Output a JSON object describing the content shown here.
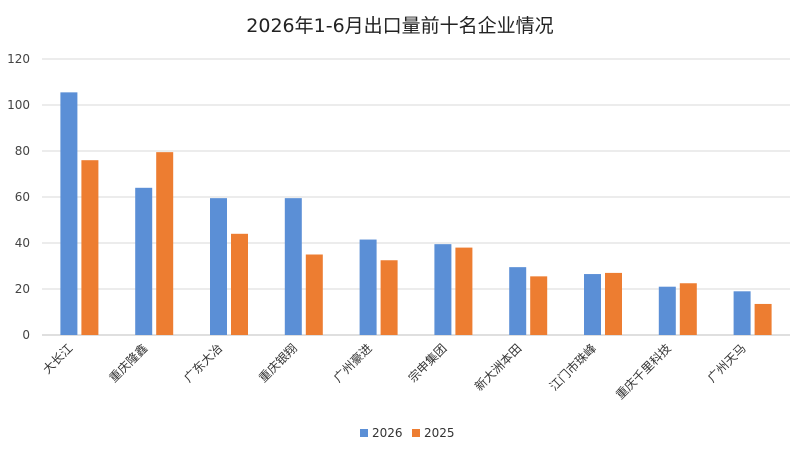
{
  "chart_data": {
    "type": "bar",
    "title": "2026年1-6月出口量前十名企业情况",
    "categories": [
      "大长江",
      "重庆隆鑫",
      "广东大冶",
      "重庆银翔",
      "广州豪进",
      "宗申集团",
      "新大洲本田",
      "江门市珠峰",
      "重庆千里科技",
      "广州天马"
    ],
    "series": [
      {
        "name": "2026",
        "color": "#5b8fd6",
        "values": [
          105.5,
          64,
          59.5,
          59.5,
          41.5,
          39.5,
          29.5,
          26.5,
          21,
          19
        ]
      },
      {
        "name": "2025",
        "color": "#ed7d31",
        "values": [
          76,
          79.5,
          44,
          35,
          32.5,
          38,
          25.5,
          27,
          22.5,
          13.5
        ]
      }
    ],
    "ylim": [
      0,
      120
    ],
    "yticks": [
      0,
      20,
      40,
      60,
      80,
      100,
      120
    ],
    "grid": true,
    "legend": "bottom-center",
    "xlabel": "",
    "ylabel": ""
  }
}
